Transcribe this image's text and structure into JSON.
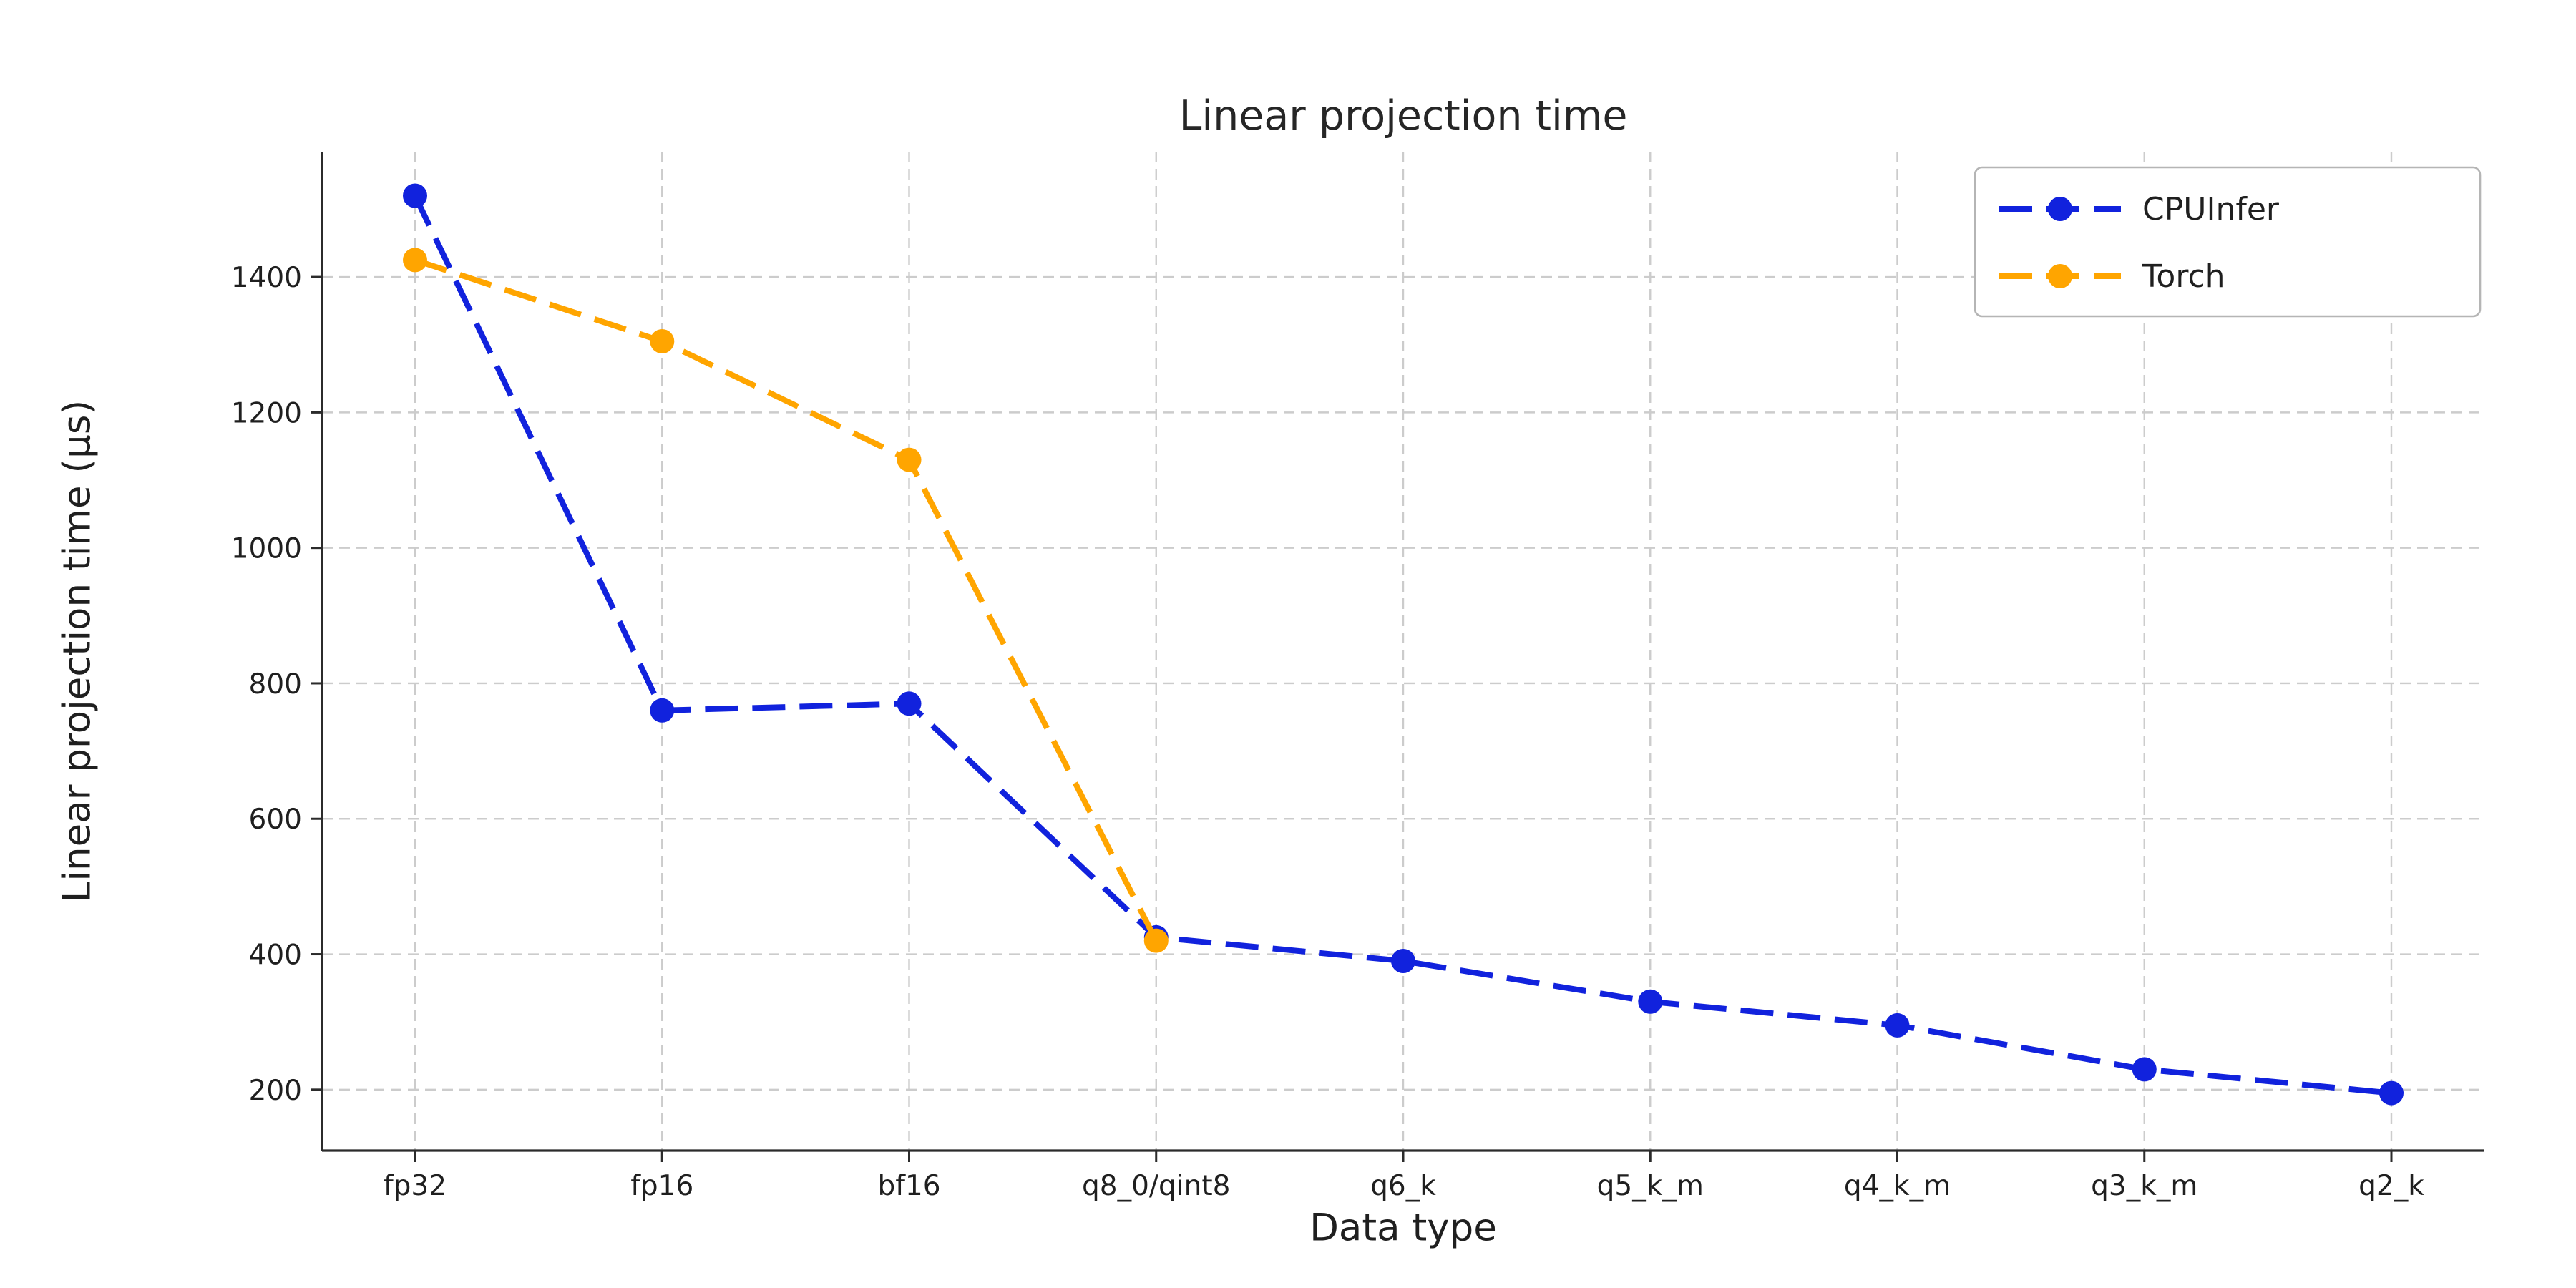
{
  "chart_data": {
    "type": "line",
    "title": "Linear projection time",
    "xlabel": "Data type",
    "ylabel": "Linear projection time (µs)",
    "categories": [
      "fp32",
      "fp16",
      "bf16",
      "q8_0/qint8",
      "q6_k",
      "q5_k_m",
      "q4_k_m",
      "q3_k_m",
      "q2_k"
    ],
    "series": [
      {
        "name": "CPUInfer",
        "color": "#1122dd",
        "values": [
          1520,
          760,
          770,
          425,
          390,
          330,
          295,
          230,
          195
        ]
      },
      {
        "name": "Torch",
        "color": "#ffa500",
        "values": [
          1425,
          1305,
          1130,
          420,
          null,
          null,
          null,
          null,
          null
        ]
      }
    ],
    "yticks": [
      200,
      400,
      600,
      800,
      1000,
      1200,
      1400
    ],
    "ylim": [
      110,
      1585
    ],
    "grid": true,
    "line_style": "dashed",
    "marker": "circle",
    "legend_position": "upper right"
  }
}
